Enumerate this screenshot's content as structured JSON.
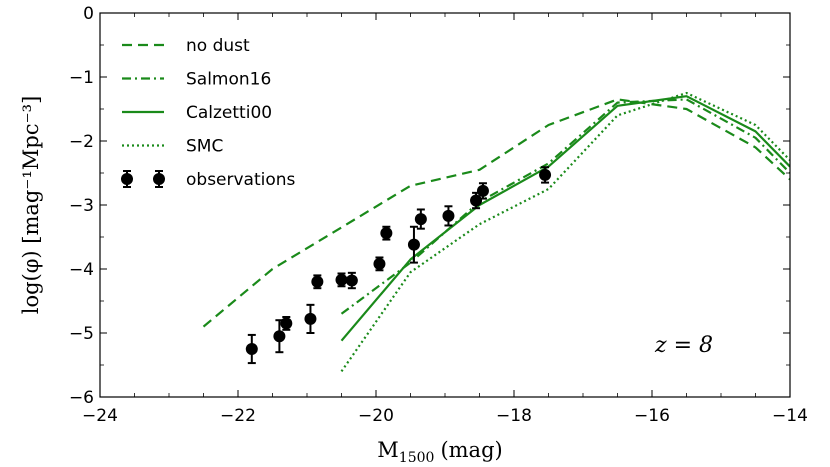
{
  "chart_data": {
    "type": "line",
    "title": "",
    "xlabel_main": "M",
    "xlabel_sub": "1500",
    "xlabel_unit": "(mag)",
    "ylabel": "log(φ) [mag⁻¹Mpc⁻³]",
    "xlim": [
      -24,
      -14
    ],
    "ylim": [
      -6,
      0
    ],
    "xticks": [
      -24,
      -22,
      -20,
      -18,
      -16,
      -14
    ],
    "yticks": [
      0,
      -1,
      -2,
      -3,
      -4,
      -5,
      -6
    ],
    "xtick_labels": [
      "−24",
      "−22",
      "−20",
      "−18",
      "−16",
      "−14"
    ],
    "ytick_labels": [
      "0",
      "−1",
      "−2",
      "−3",
      "−4",
      "−5",
      "−6"
    ],
    "annotation": "z = 8",
    "legend_position": "upper-left",
    "grid": false,
    "series": [
      {
        "name": "no dust",
        "style": "dashed",
        "color": "#1a8a1a",
        "x": [
          -22.5,
          -21.5,
          -20.5,
          -19.5,
          -18.5,
          -17.5,
          -16.5,
          -15.5,
          -14.5,
          -14.0
        ],
        "y": [
          -4.9,
          -4.0,
          -3.35,
          -2.7,
          -2.45,
          -1.75,
          -1.35,
          -1.5,
          -2.1,
          -2.6
        ]
      },
      {
        "name": "Salmon16",
        "style": "dashdot",
        "color": "#1a8a1a",
        "x": [
          -20.5,
          -19.5,
          -18.5,
          -17.5,
          -16.5,
          -15.5,
          -14.5,
          -14.0
        ],
        "y": [
          -4.7,
          -3.9,
          -2.95,
          -2.35,
          -1.4,
          -1.35,
          -1.95,
          -2.5
        ]
      },
      {
        "name": "Calzetti00",
        "style": "solid",
        "color": "#1a8a1a",
        "x": [
          -20.5,
          -19.5,
          -18.5,
          -17.5,
          -16.5,
          -15.5,
          -14.5,
          -14.0
        ],
        "y": [
          -5.12,
          -3.85,
          -3.0,
          -2.4,
          -1.45,
          -1.3,
          -1.85,
          -2.4
        ]
      },
      {
        "name": "SMC",
        "style": "dotted",
        "color": "#1a8a1a",
        "x": [
          -20.5,
          -19.5,
          -18.5,
          -17.5,
          -16.5,
          -15.5,
          -14.5,
          -14.0
        ],
        "y": [
          -5.6,
          -4.05,
          -3.3,
          -2.75,
          -1.6,
          -1.25,
          -1.75,
          -2.3
        ]
      },
      {
        "name": "observations",
        "style": "errorbar",
        "color": "#000000",
        "x": [
          -21.8,
          -21.4,
          -21.3,
          -20.95,
          -20.85,
          -20.5,
          -20.35,
          -19.95,
          -19.85,
          -19.45,
          -19.35,
          -18.95,
          -18.55,
          -18.45,
          -17.55
        ],
        "y": [
          -5.25,
          -5.05,
          -4.85,
          -4.78,
          -4.2,
          -4.17,
          -4.18,
          -3.92,
          -3.44,
          -3.62,
          -3.22,
          -3.17,
          -2.93,
          -2.78,
          -2.53
        ],
        "yerr": [
          0.22,
          0.25,
          0.1,
          0.22,
          0.1,
          0.1,
          0.12,
          0.1,
          0.1,
          0.28,
          0.15,
          0.15,
          0.12,
          0.12,
          0.12
        ]
      }
    ]
  }
}
